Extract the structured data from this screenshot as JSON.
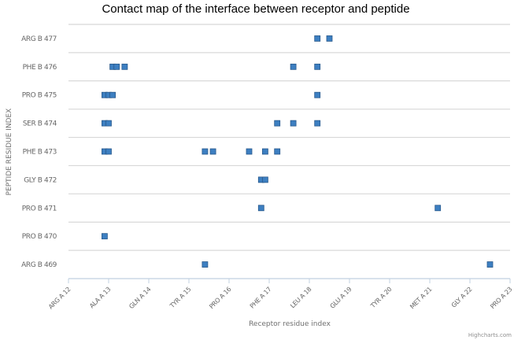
{
  "chart_data": {
    "type": "scatter",
    "title": "Contact map of the interface between receptor and peptide",
    "xlabel": "Receptor residue index",
    "ylabel": "PEPTIDE RESIDUE INDEX",
    "credits": "Highcharts.com",
    "grid": true,
    "legend": "none",
    "marker_color": "#3d7fc1",
    "marker_stroke": "#2a5a8c",
    "xlim": [
      0,
      110
    ],
    "x_tick_step": 10,
    "x_tick_labels": [
      "ARG A 12",
      "ALA A 13",
      "GLN A 14",
      "TYR A 15",
      "PRO A 16",
      "PHE A 17",
      "LEU A 18",
      "GLU A 19",
      "TYR A 20",
      "MET A 21",
      "GLY A 22",
      "PRO A 23"
    ],
    "y_categories": [
      "ARG B 469",
      "PRO B 470",
      "PRO B 471",
      "GLY B 472",
      "PHE B 473",
      "SER B 474",
      "PRO B 475",
      "PHE B 476",
      "ARG B 477"
    ],
    "points": [
      {
        "y": "ARG B 477",
        "x": [
          62,
          65
        ]
      },
      {
        "y": "PHE B 476",
        "x": [
          11,
          12,
          14,
          56,
          62
        ]
      },
      {
        "y": "PRO B 475",
        "x": [
          9,
          10,
          11,
          62
        ]
      },
      {
        "y": "SER B 474",
        "x": [
          9,
          10,
          52,
          56,
          62
        ]
      },
      {
        "y": "PHE B 473",
        "x": [
          9,
          10,
          34,
          36,
          45,
          49,
          52
        ]
      },
      {
        "y": "GLY B 472",
        "x": [
          48,
          49
        ]
      },
      {
        "y": "PRO B 471",
        "x": [
          48,
          92
        ]
      },
      {
        "y": "PRO B 470",
        "x": [
          9
        ]
      },
      {
        "y": "ARG B 469",
        "x": [
          34,
          105
        ]
      }
    ]
  }
}
